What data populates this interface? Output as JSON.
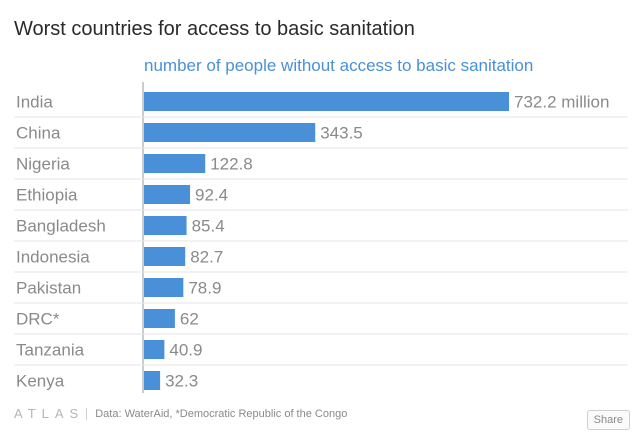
{
  "chart_data": {
    "type": "bar",
    "orientation": "horizontal",
    "title": "Worst countries for access to basic sanitation",
    "subtitle": "number of people without access to basic sanitation",
    "categories": [
      "India",
      "China",
      "Nigeria",
      "Ethiopia",
      "Bangladesh",
      "Indonesia",
      "Pakistan",
      "DRC*",
      "Tanzania",
      "Kenya"
    ],
    "values": [
      732.2,
      343.5,
      122.8,
      92.4,
      85.4,
      82.7,
      78.9,
      62,
      40.9,
      32.3
    ],
    "value_labels": [
      "732.2 million",
      "343.5",
      "122.8",
      "92.4",
      "85.4",
      "82.7",
      "78.9",
      "62",
      "40.9",
      "32.3"
    ],
    "xlim": [
      0,
      732.2
    ],
    "grid": true,
    "bar_color": "#4a90d9"
  },
  "footer": {
    "logo": "ATLAS",
    "source": "Data: WaterAid, *Democratic Republic of the Congo"
  },
  "share_label": "Share"
}
